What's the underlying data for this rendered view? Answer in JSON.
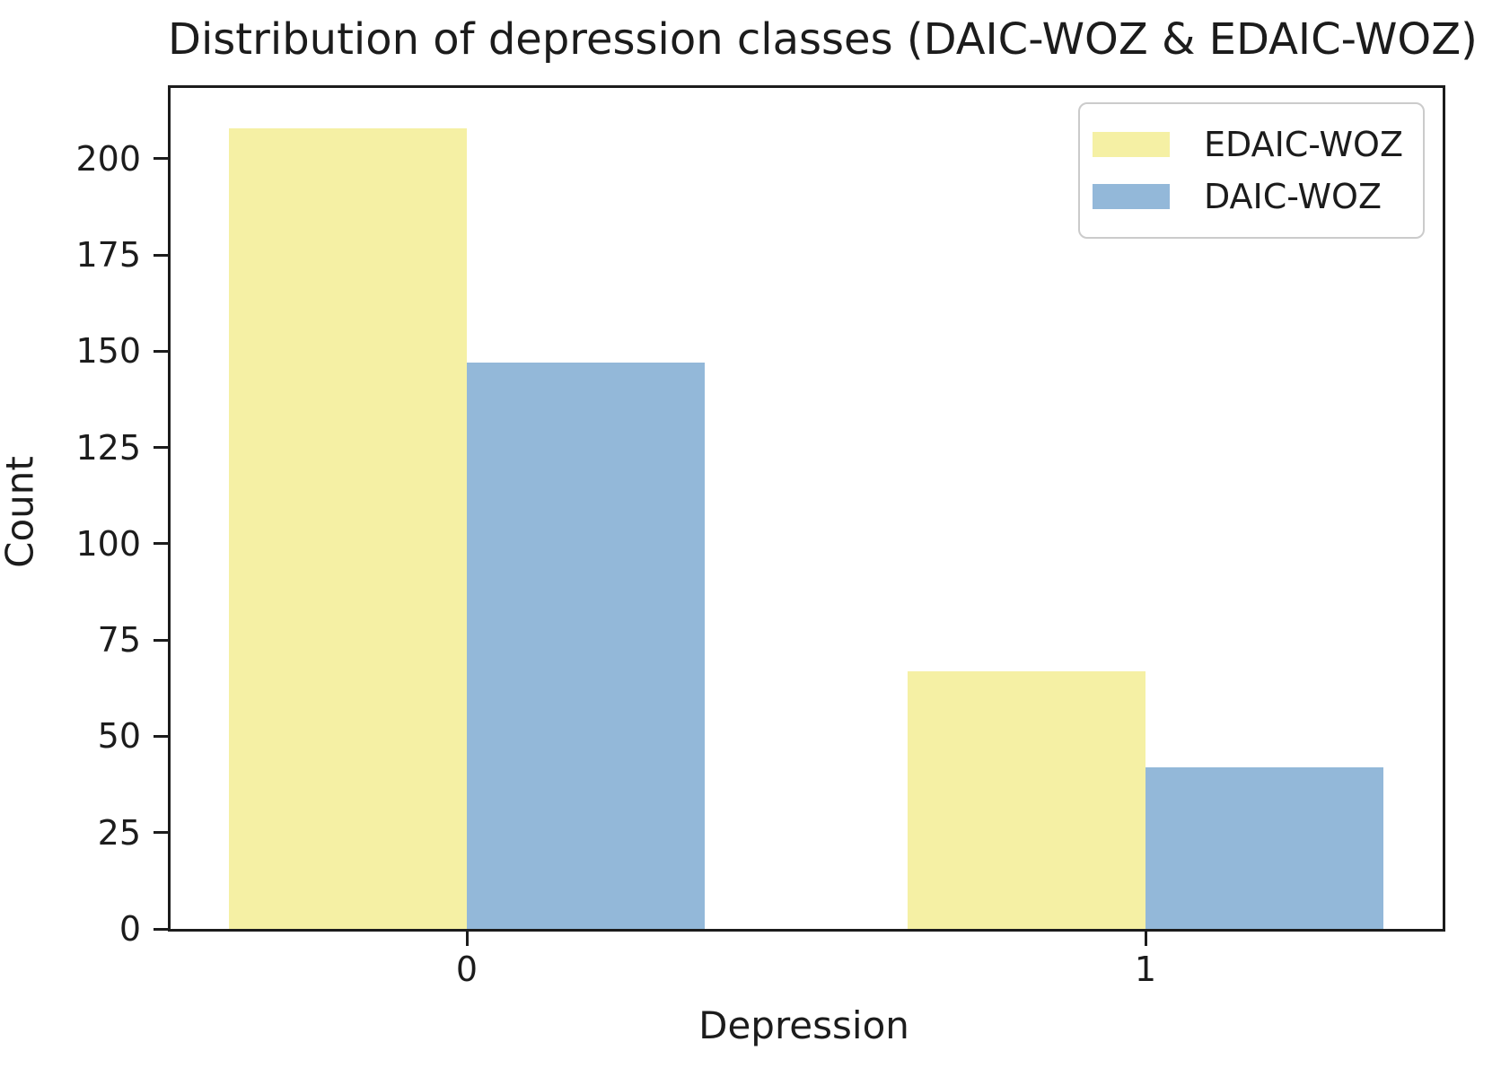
{
  "title": "Distribution of depression classes (DAIC-WOZ & EDAIC-WOZ)",
  "chart_data": {
    "type": "bar",
    "title": "Distribution of depression classes (DAIC-WOZ & EDAIC-WOZ)",
    "xlabel": "Depression",
    "ylabel": "Count",
    "categories": [
      "0",
      "1"
    ],
    "series": [
      {
        "name": "EDAIC-WOZ",
        "color": "#f5f0a4",
        "values": [
          208,
          67
        ]
      },
      {
        "name": "DAIC-WOZ",
        "color": "#93b8d9",
        "values": [
          147,
          42
        ]
      }
    ],
    "yticks": [
      0,
      25,
      50,
      75,
      100,
      125,
      150,
      175,
      200
    ],
    "ylim": [
      0,
      218.4
    ],
    "legend_position": "upper right",
    "grid": false,
    "axis_color": "#1c1c1c",
    "text_color": "#1c1c1c"
  }
}
